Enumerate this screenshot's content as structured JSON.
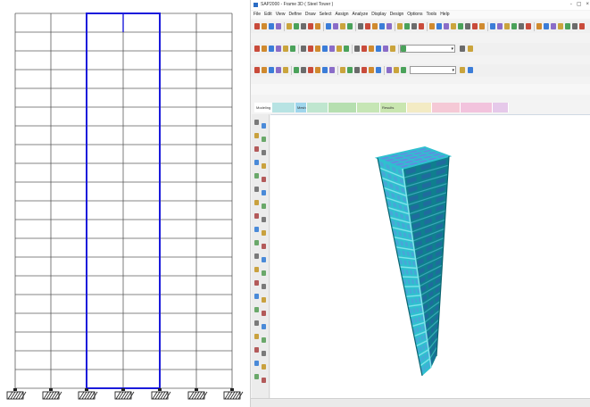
{
  "window": {
    "title": "SAP2000 - Frame 3D  ( Steel Tower )",
    "controls": [
      "-",
      "▢",
      "×"
    ]
  },
  "menubar": {
    "items": [
      "File",
      "Edit",
      "View",
      "Define",
      "Draw",
      "Select",
      "Assign",
      "Analyze",
      "Display",
      "Design",
      "Options",
      "Tools",
      "Help"
    ]
  },
  "toolbars": {
    "combo1_value": "",
    "combo2_value": "",
    "command_line": ""
  },
  "tabs": [
    {
      "label": "Modeling",
      "color": "#ffffff"
    },
    {
      "label": "",
      "color": "#b7e3e3"
    },
    {
      "label": "Mesh",
      "color": "#9fd6ec"
    },
    {
      "label": "",
      "color": "#bfe6cf"
    },
    {
      "label": "",
      "color": "#b6dfb0"
    },
    {
      "label": "",
      "color": "#c6e6b5"
    },
    {
      "label": "Results",
      "color": "#c9e6b0"
    },
    {
      "label": "",
      "color": "#f3ebc4"
    },
    {
      "label": "",
      "color": "#f5c9d6"
    },
    {
      "label": "",
      "color": "#f2c3dd"
    },
    {
      "label": "",
      "color": "#e6c9ea"
    }
  ],
  "statusbar": {
    "left": "",
    "center": "",
    "right": ""
  },
  "colors": {
    "frame_grid": "#5b5b5b",
    "frame_highlight": "#1a1adb",
    "model_cyan": "#2fc0cf",
    "model_dark": "#0f7f8e",
    "model_slab": "#5e8fe0"
  },
  "icons": {
    "support": "pinned-support-icon",
    "app": "app-logo-icon"
  }
}
